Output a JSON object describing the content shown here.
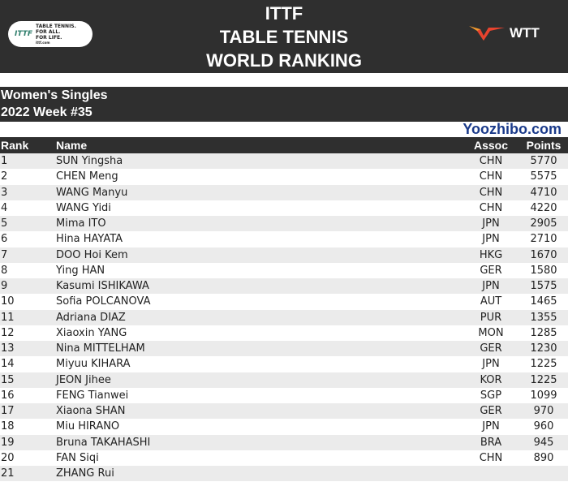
{
  "header": {
    "title_lines": [
      "ITTF",
      "TABLE TENNIS",
      "WORLD RANKING"
    ],
    "left_logo": {
      "mark": "ITTF",
      "text": [
        "TABLE TENNIS.",
        "FOR ALL.",
        "FOR LIFE.",
        "ittf.com"
      ]
    },
    "right_logo": {
      "text": "WTT",
      "colors": [
        "#e8432e",
        "#f29a2e"
      ]
    }
  },
  "subtitle": {
    "category": "Women's Singles",
    "week": "2022 Week #35"
  },
  "table": {
    "columns": [
      "Rank",
      "Name",
      "Assoc",
      "Points"
    ],
    "rows": [
      [
        "1",
        "SUN Yingsha",
        "CHN",
        "5770"
      ],
      [
        "2",
        "CHEN Meng",
        "CHN",
        "5575"
      ],
      [
        "3",
        "WANG Manyu",
        "CHN",
        "4710"
      ],
      [
        "4",
        "WANG Yidi",
        "CHN",
        "4220"
      ],
      [
        "5",
        "Mima ITO",
        "JPN",
        "2905"
      ],
      [
        "6",
        "Hina HAYATA",
        "JPN",
        "2710"
      ],
      [
        "7",
        "DOO Hoi Kem",
        "HKG",
        "1670"
      ],
      [
        "8",
        "Ying HAN",
        "GER",
        "1580"
      ],
      [
        "9",
        "Kasumi ISHIKAWA",
        "JPN",
        "1575"
      ],
      [
        "10",
        "Sofia POLCANOVA",
        "AUT",
        "1465"
      ],
      [
        "11",
        "Adriana DIAZ",
        "PUR",
        "1355"
      ],
      [
        "12",
        "Xiaoxin YANG",
        "MON",
        "1285"
      ],
      [
        "13",
        "Nina MITTELHAM",
        "GER",
        "1230"
      ],
      [
        "14",
        "Miyuu KIHARA",
        "JPN",
        "1225"
      ],
      [
        "15",
        "JEON Jihee",
        "KOR",
        "1225"
      ],
      [
        "16",
        "FENG Tianwei",
        "SGP",
        "1099"
      ],
      [
        "17",
        "Xiaona SHAN",
        "GER",
        "970"
      ],
      [
        "18",
        "Miu HIRANO",
        "JPN",
        "960"
      ],
      [
        "19",
        "Bruna TAKAHASHI",
        "BRA",
        "945"
      ],
      [
        "20",
        "FAN Siqi",
        "CHN",
        "890"
      ],
      [
        "21",
        "ZHANG Rui",
        "",
        ""
      ]
    ]
  },
  "watermark": "Yoozhibo.com"
}
